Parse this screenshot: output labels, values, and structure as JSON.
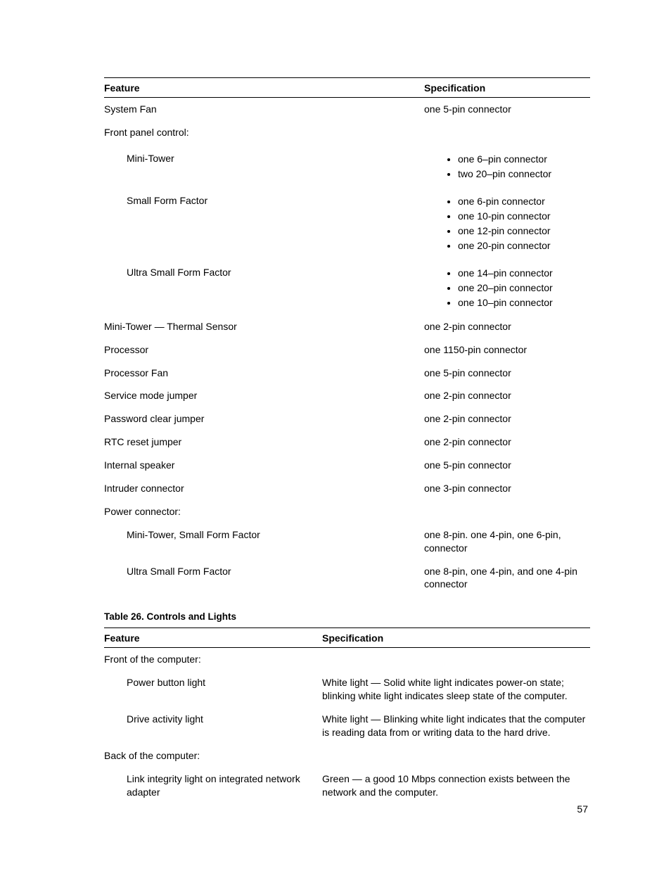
{
  "table1": {
    "headers": {
      "feature": "Feature",
      "spec": "Specification"
    },
    "rows": [
      {
        "feature": "System Fan",
        "spec": "one 5-pin connector",
        "indent": 0
      },
      {
        "feature": "Front panel control:",
        "spec": "",
        "indent": 0
      },
      {
        "feature": "Mini-Tower",
        "indent": 1,
        "list": [
          "one 6–pin connector",
          "two 20–pin connector"
        ]
      },
      {
        "feature": "Small Form Factor",
        "indent": 1,
        "list": [
          "one 6-pin connector",
          "one 10-pin connector",
          "one 12-pin connector",
          "one 20-pin connector"
        ]
      },
      {
        "feature": "Ultra Small Form Factor",
        "indent": 1,
        "list": [
          "one 14–pin connector",
          "one 20–pin connector",
          "one 10–pin connector"
        ]
      },
      {
        "feature": "Mini-Tower — Thermal Sensor",
        "spec": "one 2-pin connector",
        "indent": 0
      },
      {
        "feature": "Processor",
        "spec": "one 1150-pin connector",
        "indent": 0
      },
      {
        "feature": "Processor Fan",
        "spec": "one 5-pin connector",
        "indent": 0
      },
      {
        "feature": "Service mode jumper",
        "spec": "one 2-pin connector",
        "indent": 0
      },
      {
        "feature": "Password clear jumper",
        "spec": "one 2-pin connector",
        "indent": 0
      },
      {
        "feature": "RTC reset jumper",
        "spec": "one 2-pin connector",
        "indent": 0
      },
      {
        "feature": "Internal speaker",
        "spec": "one 5-pin connector",
        "indent": 0
      },
      {
        "feature": "Intruder connector",
        "spec": "one 3-pin connector",
        "indent": 0
      },
      {
        "feature": "Power connector:",
        "spec": "",
        "indent": 0
      },
      {
        "feature": "Mini-Tower, Small Form Factor",
        "spec": "one 8-pin. one 4-pin, one 6-pin, connector",
        "indent": 1
      },
      {
        "feature": "Ultra Small Form Factor",
        "spec": "one 8-pin, one 4-pin, and one 4-pin connector",
        "indent": 1
      }
    ]
  },
  "table2": {
    "caption": "Table 26. Controls and Lights",
    "headers": {
      "feature": "Feature",
      "spec": "Specification"
    },
    "rows": [
      {
        "feature": "Front of the computer:",
        "spec": "",
        "indent": 0
      },
      {
        "feature": "Power button light",
        "spec": "White light — Solid white light indicates power-on state; blinking white light indicates sleep state of the computer.",
        "indent": 1
      },
      {
        "feature": "Drive activity light",
        "spec": "White light — Blinking white light indicates that the computer is reading data from or writing data to the hard drive.",
        "indent": 1
      },
      {
        "feature": "Back of the computer:",
        "spec": "",
        "indent": 0
      },
      {
        "feature": "Link integrity light on integrated network adapter",
        "spec": "Green — a good 10 Mbps connection exists between the network and the computer.",
        "indent": 1
      }
    ]
  },
  "page_number": "57"
}
